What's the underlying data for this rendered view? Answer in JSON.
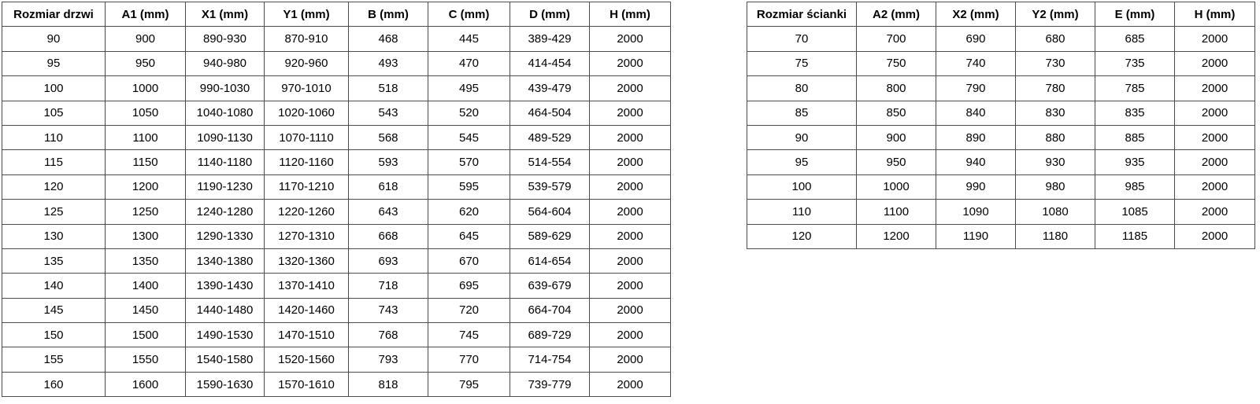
{
  "page": {
    "background_color": "#ffffff",
    "text_color": "#000000",
    "border_color": "#4d4d4d"
  },
  "tables": [
    {
      "name": "door-dimensions-table",
      "headers": [
        "Rozmiar drzwi",
        "A1 (mm)",
        "X1 (mm)",
        "Y1 (mm)",
        "B (mm)",
        "C (mm)",
        "D (mm)",
        "H (mm)"
      ],
      "rows": [
        [
          "90",
          "900",
          "890-930",
          "870-910",
          "468",
          "445",
          "389-429",
          "2000"
        ],
        [
          "95",
          "950",
          "940-980",
          "920-960",
          "493",
          "470",
          "414-454",
          "2000"
        ],
        [
          "100",
          "1000",
          "990-1030",
          "970-1010",
          "518",
          "495",
          "439-479",
          "2000"
        ],
        [
          "105",
          "1050",
          "1040-1080",
          "1020-1060",
          "543",
          "520",
          "464-504",
          "2000"
        ],
        [
          "110",
          "1100",
          "1090-1130",
          "1070-1110",
          "568",
          "545",
          "489-529",
          "2000"
        ],
        [
          "115",
          "1150",
          "1140-1180",
          "1120-1160",
          "593",
          "570",
          "514-554",
          "2000"
        ],
        [
          "120",
          "1200",
          "1190-1230",
          "1170-1210",
          "618",
          "595",
          "539-579",
          "2000"
        ],
        [
          "125",
          "1250",
          "1240-1280",
          "1220-1260",
          "643",
          "620",
          "564-604",
          "2000"
        ],
        [
          "130",
          "1300",
          "1290-1330",
          "1270-1310",
          "668",
          "645",
          "589-629",
          "2000"
        ],
        [
          "135",
          "1350",
          "1340-1380",
          "1320-1360",
          "693",
          "670",
          "614-654",
          "2000"
        ],
        [
          "140",
          "1400",
          "1390-1430",
          "1370-1410",
          "718",
          "695",
          "639-679",
          "2000"
        ],
        [
          "145",
          "1450",
          "1440-1480",
          "1420-1460",
          "743",
          "720",
          "664-704",
          "2000"
        ],
        [
          "150",
          "1500",
          "1490-1530",
          "1470-1510",
          "768",
          "745",
          "689-729",
          "2000"
        ],
        [
          "155",
          "1550",
          "1540-1580",
          "1520-1560",
          "793",
          "770",
          "714-754",
          "2000"
        ],
        [
          "160",
          "1600",
          "1590-1630",
          "1570-1610",
          "818",
          "795",
          "739-779",
          "2000"
        ]
      ]
    },
    {
      "name": "wall-dimensions-table",
      "headers": [
        "Rozmiar ścianki",
        "A2 (mm)",
        "X2 (mm)",
        "Y2 (mm)",
        "E (mm)",
        "H (mm)"
      ],
      "rows": [
        [
          "70",
          "700",
          "690",
          "680",
          "685",
          "2000"
        ],
        [
          "75",
          "750",
          "740",
          "730",
          "735",
          "2000"
        ],
        [
          "80",
          "800",
          "790",
          "780",
          "785",
          "2000"
        ],
        [
          "85",
          "850",
          "840",
          "830",
          "835",
          "2000"
        ],
        [
          "90",
          "900",
          "890",
          "880",
          "885",
          "2000"
        ],
        [
          "95",
          "950",
          "940",
          "930",
          "935",
          "2000"
        ],
        [
          "100",
          "1000",
          "990",
          "980",
          "985",
          "2000"
        ],
        [
          "110",
          "1100",
          "1090",
          "1080",
          "1085",
          "2000"
        ],
        [
          "120",
          "1200",
          "1190",
          "1180",
          "1185",
          "2000"
        ]
      ]
    }
  ]
}
